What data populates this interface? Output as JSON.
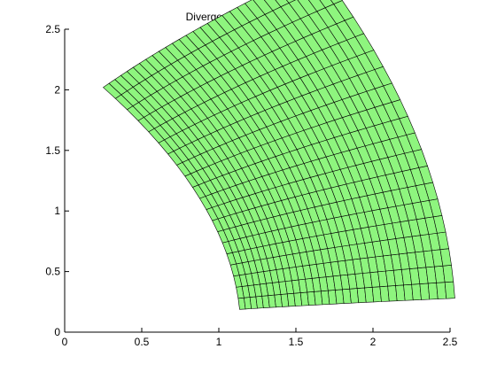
{
  "chart_data": {
    "type": "surface-mesh",
    "title": "Divergencia con el nuevo u",
    "xlim": [
      0,
      2.5
    ],
    "ylim": [
      0,
      2.5
    ],
    "x_ticks": [
      0,
      0.5,
      1,
      1.5,
      2,
      2.5
    ],
    "x_tick_labels": [
      "0",
      "0.5",
      "1",
      "1.5",
      "2",
      "2.5"
    ],
    "y_ticks": [
      0,
      0.5,
      1,
      1.5,
      2,
      2.5
    ],
    "y_tick_labels": [
      "0",
      "0.5",
      "1",
      "1.5",
      "2",
      "2.5"
    ],
    "grid": false,
    "face_color": "#8ef57e",
    "edge_color": "#000000",
    "mesh_rows": 20,
    "mesh_cols": 30,
    "corners": {
      "top_left": [
        0.25,
        2.02
      ],
      "top_right": [
        1.27,
        2.38
      ],
      "bottom_right": [
        2.02,
        0.25
      ],
      "bottom_left": [
        2.38,
        1.27
      ]
    }
  }
}
